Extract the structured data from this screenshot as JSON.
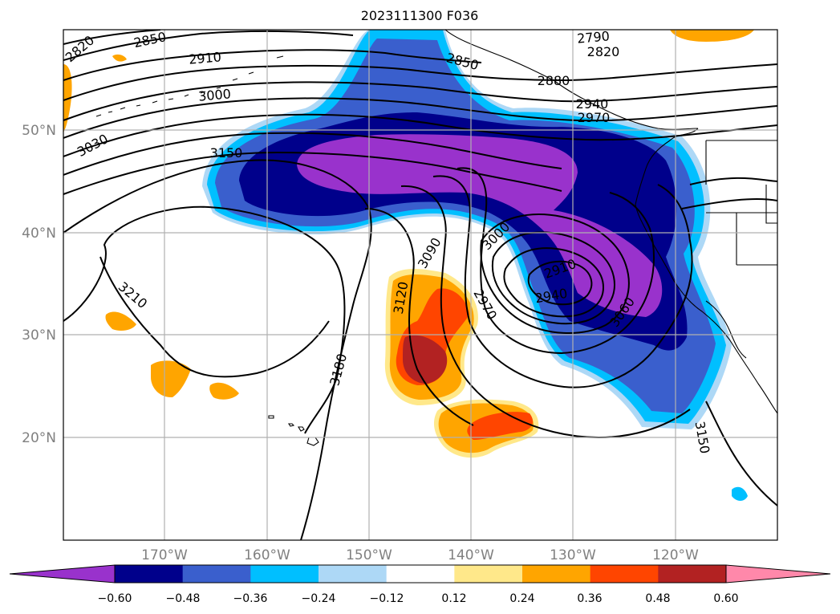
{
  "title": "2023111300 F036",
  "lat_labels": [
    "50°N",
    "40°N",
    "30°N",
    "20°N"
  ],
  "lon_labels": [
    "170°W",
    "160°W",
    "150°W",
    "140°W",
    "130°W",
    "120°W"
  ],
  "colorbar": {
    "ticks": [
      "−0.60",
      "−0.48",
      "−0.36",
      "−0.24",
      "−0.12",
      "0.12",
      "0.24",
      "0.36",
      "0.48",
      "0.60"
    ],
    "colors": [
      "#9932cc",
      "#00008b",
      "#3a5fcd",
      "#00bfff",
      "#add8f6",
      "#ffffff",
      "#ffe88a",
      "#ffa500",
      "#ff4500",
      "#b22222",
      "#ff88aa"
    ]
  },
  "contour_labels": [
    "2820",
    "2850",
    "2910",
    "3000",
    "3030",
    "3150",
    "2790",
    "2820",
    "2850",
    "2880",
    "2940",
    "2970",
    "3210",
    "3180",
    "3120",
    "3090",
    "3000",
    "2970",
    "2910",
    "2940",
    "3060",
    "3150"
  ]
}
